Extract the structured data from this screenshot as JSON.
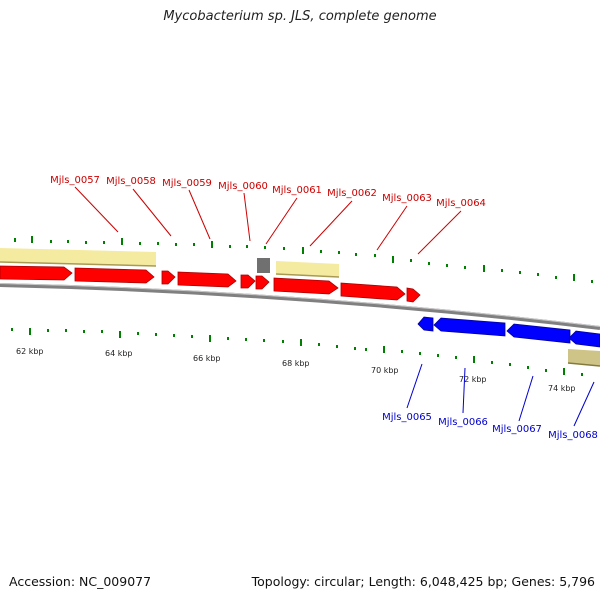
{
  "title": "Mycobacterium sp. JLS, complete genome",
  "accession": "Accession: NC_009077",
  "topology": "Topology: circular; Length: 6,048,425 bp; Genes: 5,796",
  "colors": {
    "forward_gene": "#ff0000",
    "reverse_gene": "#0000ff",
    "forward_label": "#cc0000",
    "reverse_label": "#0000cc",
    "tick": "#008000",
    "backbone": "#808080",
    "other_feature": "#f5eba0",
    "pseudo_gene": "#707070"
  },
  "kbp_labels": [
    "62 kbp",
    "64 kbp",
    "66 kbp",
    "68 kbp",
    "70 kbp",
    "72 kbp",
    "74 kbp"
  ],
  "forward_genes": [
    {
      "label": "Mjls_0057"
    },
    {
      "label": "Mjls_0058"
    },
    {
      "label": "Mjls_0059"
    },
    {
      "label": "Mjls_0060"
    },
    {
      "label": "Mjls_0061"
    },
    {
      "label": "Mjls_0062"
    },
    {
      "label": "Mjls_0063"
    },
    {
      "label": "Mjls_0064"
    }
  ],
  "reverse_genes": [
    {
      "label": "Mjls_0065"
    },
    {
      "label": "Mjls_0066"
    },
    {
      "label": "Mjls_0067"
    },
    {
      "label": "Mjls_0068"
    }
  ]
}
